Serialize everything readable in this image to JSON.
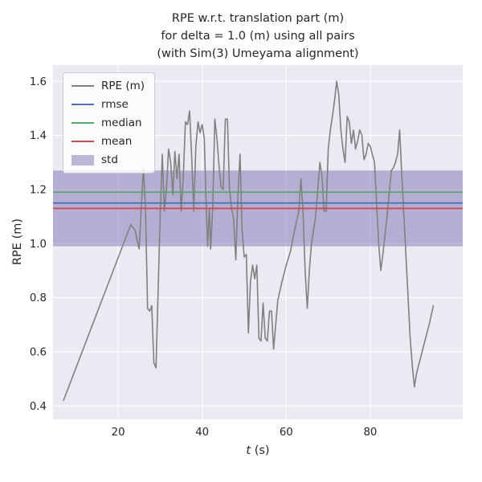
{
  "figure": {
    "title_lines": [
      "RPE w.r.t. translation part (m)",
      "for delta = 1.0 (m) using all pairs",
      "(with Sim(3) Umeyama alignment)"
    ]
  },
  "axes": {
    "xlabel_var": "t",
    "xlabel_rest": " (s)",
    "ylabel": "RPE (m)",
    "xticks": [
      20,
      40,
      60,
      80
    ],
    "yticks": [
      0.4,
      0.6,
      0.8,
      1.0,
      1.2,
      1.4,
      1.6
    ],
    "xlim": [
      4.5,
      102
    ],
    "ylim": [
      0.35,
      1.66
    ]
  },
  "legend": {
    "items": [
      {
        "label": "RPE (m)",
        "type": "line",
        "series_key": "rpe_line"
      },
      {
        "label": "rmse",
        "type": "line",
        "series_key": "rmse"
      },
      {
        "label": "median",
        "type": "line",
        "series_key": "median"
      },
      {
        "label": "mean",
        "type": "line",
        "series_key": "mean"
      },
      {
        "label": "std",
        "type": "patch",
        "series_key": "std_fill"
      }
    ]
  },
  "colors": {
    "plot_bg": "#eaeaf2",
    "grid": "#ffffff",
    "rpe_line": "#808080",
    "rmse": "#4c72b0",
    "median": "#55a868",
    "mean": "#c44e52",
    "std_fill": "#8172b2",
    "text": "#262626"
  },
  "chart_data": {
    "type": "line",
    "title": "RPE w.r.t. translation part (m) for delta = 1.0 (m) using all pairs (with Sim(3) Umeyama alignment)",
    "xlabel": "t (s)",
    "ylabel": "RPE (m)",
    "xlim": [
      4.5,
      102
    ],
    "ylim": [
      0.35,
      1.66
    ],
    "grid": true,
    "legend_position": "upper left",
    "series": [
      {
        "name": "RPE (m)",
        "t": [
          7,
          23,
          24,
          25,
          26,
          26.5,
          27,
          27.5,
          28,
          28.5,
          29,
          30,
          30.5,
          31,
          31.5,
          32,
          32.5,
          33,
          33.5,
          34,
          34.5,
          35,
          35.5,
          36,
          36.5,
          37,
          37.5,
          38,
          38.5,
          39,
          39.5,
          40,
          40.5,
          41,
          41.3,
          41.7,
          42,
          42.5,
          43,
          43.5,
          44,
          44.5,
          45,
          45.5,
          46,
          46.5,
          47,
          47.5,
          48,
          48.5,
          49,
          49.5,
          50,
          50.5,
          51,
          51.5,
          52,
          52.5,
          53,
          53.5,
          54,
          54.5,
          55,
          55.5,
          56,
          56.5,
          57,
          58,
          59,
          60,
          61,
          62,
          63,
          63.5,
          64,
          64.5,
          65,
          65.5,
          66,
          67,
          68,
          68.5,
          69,
          69.5,
          70,
          70.5,
          71,
          71.5,
          72,
          72.5,
          73,
          73.5,
          74,
          74.5,
          75,
          75.5,
          76,
          76.5,
          77,
          77.5,
          78,
          78.5,
          79,
          79.5,
          80,
          80.5,
          81,
          81.5,
          82,
          82.5,
          83,
          84,
          85,
          85.5,
          86,
          86.5,
          87,
          87.5,
          88,
          88.5,
          89,
          89.5,
          90,
          90.5,
          91,
          92,
          93,
          94,
          95
        ],
        "values": [
          0.42,
          1.07,
          1.05,
          0.98,
          1.28,
          1.13,
          0.76,
          0.75,
          0.77,
          0.56,
          0.54,
          1.1,
          1.33,
          1.12,
          1.2,
          1.35,
          1.3,
          1.18,
          1.34,
          1.24,
          1.33,
          1.12,
          1.25,
          1.45,
          1.44,
          1.49,
          1.32,
          1.12,
          1.36,
          1.45,
          1.41,
          1.44,
          1.39,
          1.12,
          0.99,
          1.13,
          0.98,
          1.13,
          1.46,
          1.39,
          1.29,
          1.21,
          1.2,
          1.46,
          1.46,
          1.2,
          1.13,
          1.09,
          0.94,
          1.18,
          1.33,
          1.05,
          0.95,
          0.96,
          0.67,
          0.86,
          0.92,
          0.87,
          0.92,
          0.65,
          0.64,
          0.78,
          0.65,
          0.64,
          0.75,
          0.75,
          0.61,
          0.79,
          0.86,
          0.92,
          0.97,
          1.05,
          1.12,
          1.24,
          1.12,
          0.9,
          0.76,
          0.9,
          1.0,
          1.1,
          1.3,
          1.25,
          1.12,
          1.12,
          1.35,
          1.42,
          1.47,
          1.53,
          1.6,
          1.55,
          1.42,
          1.35,
          1.3,
          1.47,
          1.45,
          1.37,
          1.42,
          1.35,
          1.38,
          1.42,
          1.4,
          1.31,
          1.33,
          1.37,
          1.36,
          1.33,
          1.3,
          1.15,
          1.0,
          0.9,
          0.96,
          1.1,
          1.27,
          1.28,
          1.3,
          1.33,
          1.42,
          1.25,
          1.1,
          0.95,
          0.8,
          0.65,
          0.55,
          0.47,
          0.52,
          0.58,
          0.64,
          0.7,
          0.77
        ]
      }
    ],
    "stats": {
      "rmse": 1.15,
      "median": 1.19,
      "mean": 1.13,
      "std": 0.14
    },
    "std_band": [
      0.99,
      1.27
    ]
  }
}
